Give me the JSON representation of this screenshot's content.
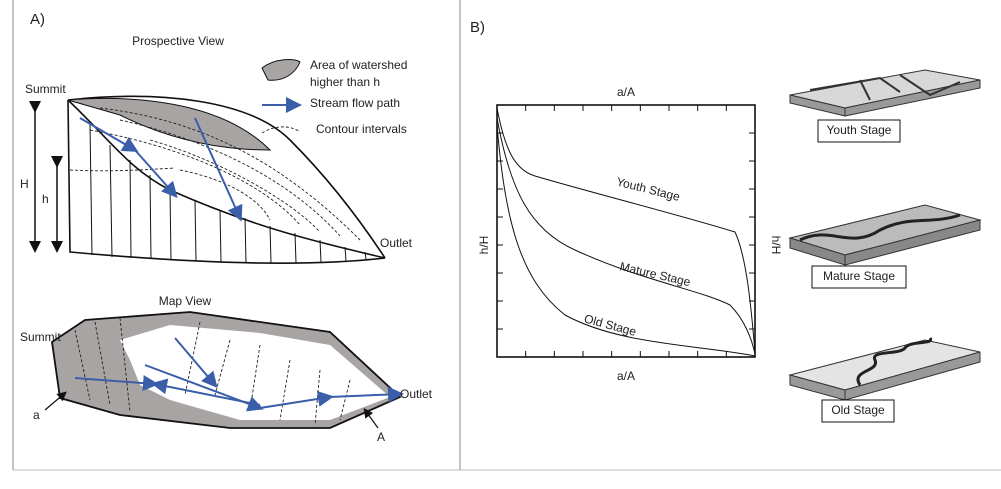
{
  "panel_a": {
    "label": "A)",
    "perspective": {
      "title": "Prospective View",
      "summit": "Summit",
      "H": "H",
      "h": "h",
      "outlet": "Outlet"
    },
    "legend": {
      "area": [
        "Area of watershed",
        "higher than h"
      ],
      "stream": "Stream flow path",
      "contour": "Contour intervals"
    },
    "map": {
      "title": "Map View",
      "summit": "Summit",
      "outlet": "Outlet",
      "a": "a",
      "A": "A"
    }
  },
  "panel_b": {
    "label": "B)",
    "x_label_top": "a/A",
    "x_label_bottom": "a/A",
    "y_label": "h/H",
    "y_label_right": "h/H",
    "curves": [
      "Youth Stage",
      "Mature Stage",
      "Old Stage"
    ],
    "stages": [
      "Youth Stage",
      "Mature Stage",
      "Old Stage"
    ]
  }
}
